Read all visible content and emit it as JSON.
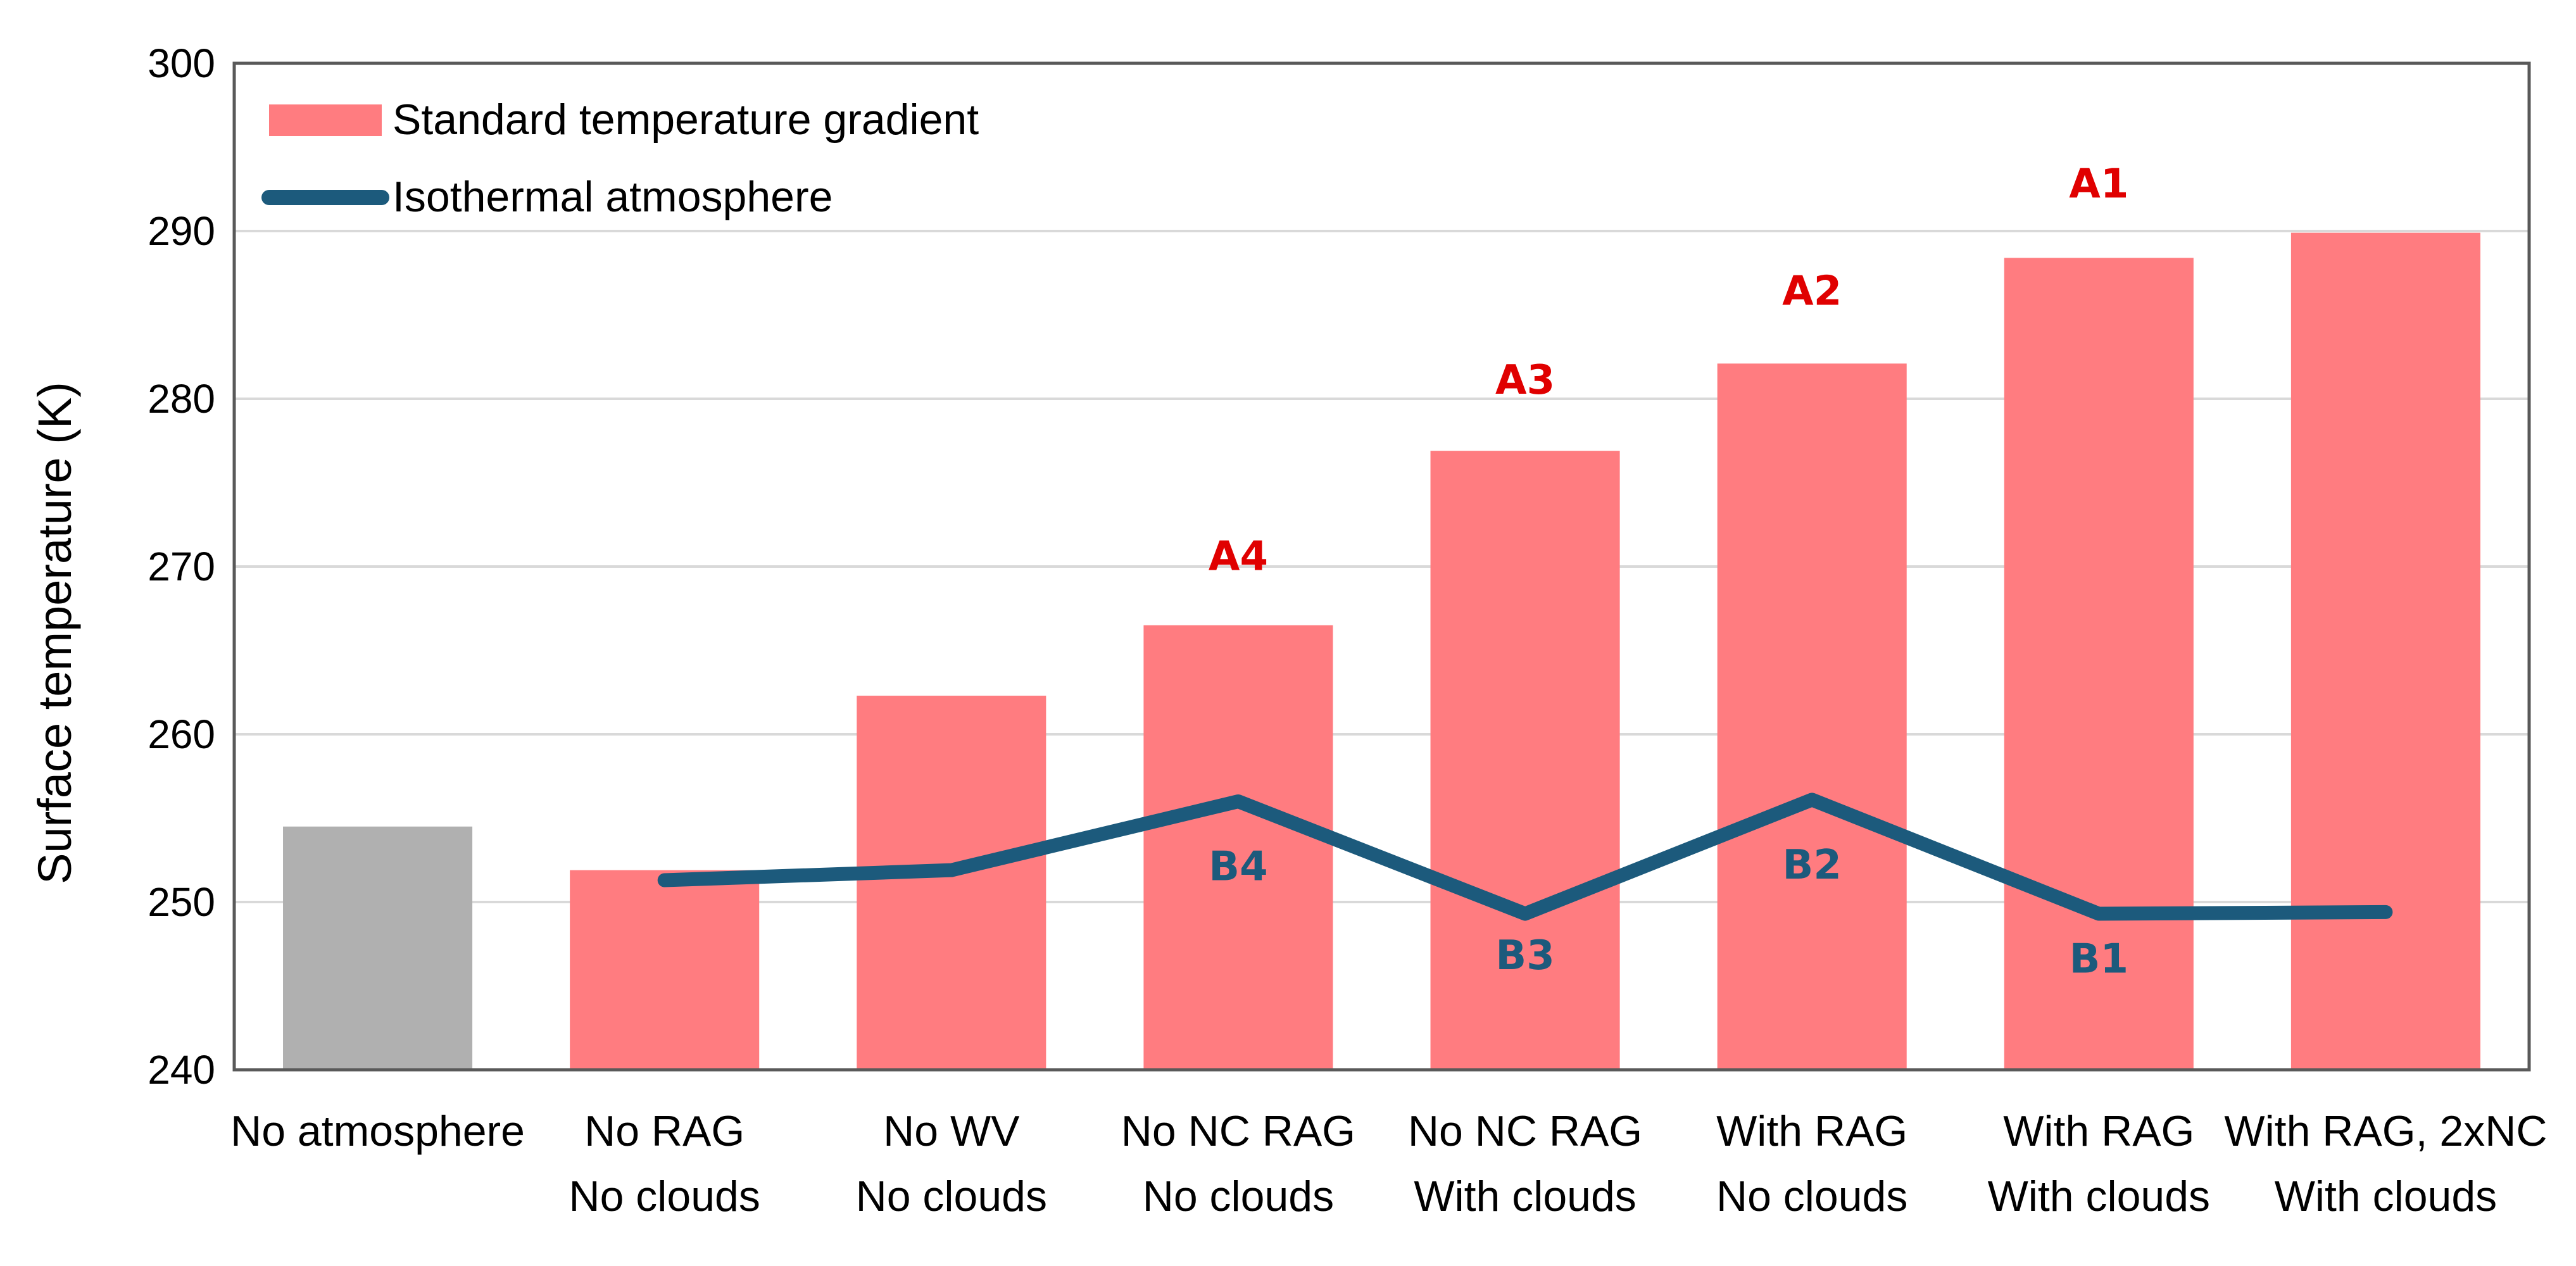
{
  "chart_data": {
    "type": "bar",
    "categories": [
      [
        "No atmosphere",
        ""
      ],
      [
        "No RAG",
        "No clouds"
      ],
      [
        "No WV",
        "No clouds"
      ],
      [
        "No NC RAG",
        "No clouds"
      ],
      [
        "No NC RAG",
        "With clouds"
      ],
      [
        "With RAG",
        "No clouds"
      ],
      [
        "With RAG",
        "With clouds"
      ],
      [
        "With RAG, 2xNC",
        "With clouds"
      ]
    ],
    "series": [
      {
        "name": "Standard temperature gradient",
        "kind": "bar",
        "color": "#ff7c80",
        "values": [
          254.5,
          251.9,
          262.3,
          266.5,
          276.9,
          282.1,
          288.4,
          289.9
        ]
      },
      {
        "name": "Isothermal atmosphere",
        "kind": "line",
        "color": "#1c5a7c",
        "values": [
          null,
          251.3,
          251.9,
          256.0,
          249.3,
          256.1,
          249.3,
          249.4
        ]
      }
    ],
    "bar_override_colors": {
      "0": "#b0b0b0"
    },
    "ylabel": "Surface temperature (K)",
    "ylim": [
      240,
      300
    ],
    "yticks": [
      240,
      250,
      260,
      270,
      280,
      290,
      300
    ],
    "grid": true,
    "legend_position": "top-left",
    "annotations": [
      {
        "text": "A1",
        "category_index": 6,
        "value": 292.0,
        "color": "#e00000"
      },
      {
        "text": "A2",
        "category_index": 5,
        "value": 285.6,
        "color": "#e00000"
      },
      {
        "text": "A3",
        "category_index": 4,
        "value": 280.3,
        "color": "#e00000"
      },
      {
        "text": "A4",
        "category_index": 3,
        "value": 269.8,
        "color": "#e00000"
      },
      {
        "text": "B4",
        "category_index": 3,
        "value": 251.3,
        "color": "#1c5a7c"
      },
      {
        "text": "B3",
        "category_index": 4,
        "value": 246.0,
        "color": "#1c5a7c"
      },
      {
        "text": "B2",
        "category_index": 5,
        "value": 251.4,
        "color": "#1c5a7c"
      },
      {
        "text": "B1",
        "category_index": 6,
        "value": 245.8,
        "color": "#1c5a7c"
      }
    ]
  }
}
